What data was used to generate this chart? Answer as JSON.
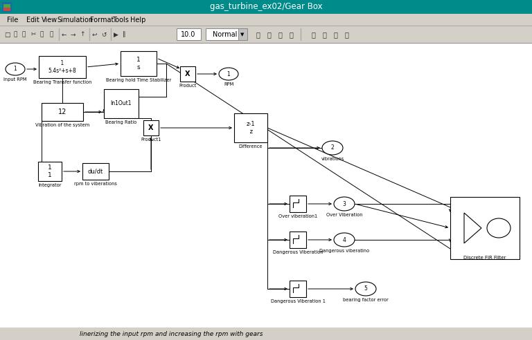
{
  "title": "gas_turbine_ex02/Gear Box",
  "title_bar_color": "#008B8B",
  "title_text_color": "#ffffff",
  "bg_color": "#ffffff",
  "menu_bar_color": "#d4d0c8",
  "canvas_color": "#ffffff",
  "menu_items": [
    "File",
    "Edit",
    "View",
    "Simulation",
    "Format",
    "Tools",
    "Help"
  ],
  "menu_x": [
    10,
    38,
    60,
    82,
    130,
    162,
    188
  ],
  "bottom_text": "linerizing the input rpm and increasing the rpm with gears",
  "toolbar_value": "10.0",
  "toolbar_mode": "Normal"
}
